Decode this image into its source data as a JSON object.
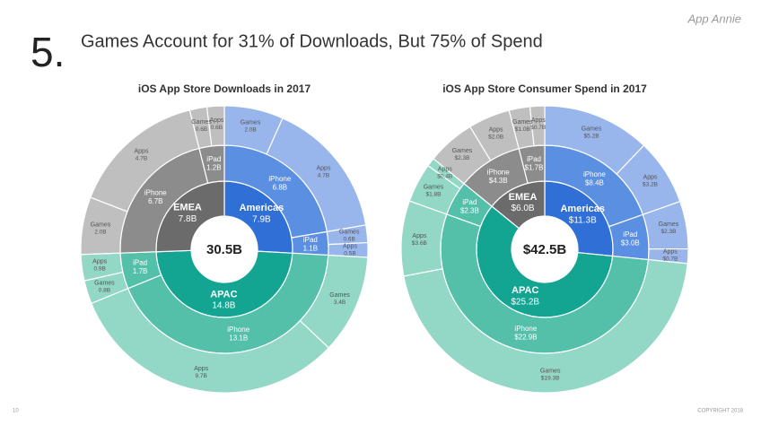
{
  "header": {
    "number": "5.",
    "title": "Games Account for 31% of Downloads, But 75% of Spend",
    "logo": "App Annie"
  },
  "footer": {
    "page": "10",
    "copyright": "COPYRIGHT 2018"
  },
  "chart_data": [
    {
      "type": "sunburst",
      "title": "iOS App Store Downloads in 2017",
      "total": 30.5,
      "total_label": "30.5B",
      "nodes": [
        {
          "name": "Americas",
          "value": 7.9,
          "value_label": "7.9B",
          "colors": [
            "#2f6fd6",
            "#5b8fe2",
            "#98b6ec"
          ],
          "children": [
            {
              "name": "iPhone",
              "value": 6.8,
              "value_label": "6.8B",
              "children": [
                {
                  "name": "Games",
                  "value": 2.0,
                  "value_label": "2.0B"
                },
                {
                  "name": "Apps",
                  "value": 4.7,
                  "value_label": "4.7B"
                }
              ]
            },
            {
              "name": "iPad",
              "value": 1.1,
              "value_label": "1.1B",
              "children": [
                {
                  "name": "Games",
                  "value": 0.6,
                  "value_label": "0.6B"
                },
                {
                  "name": "Apps",
                  "value": 0.5,
                  "value_label": "0.5B"
                }
              ]
            }
          ]
        },
        {
          "name": "APAC",
          "value": 14.8,
          "value_label": "14.8B",
          "colors": [
            "#13a592",
            "#55c0aa",
            "#93d7c7"
          ],
          "children": [
            {
              "name": "iPhone",
              "value": 13.1,
              "value_label": "13.1B",
              "children": [
                {
                  "name": "Games",
                  "value": 3.4,
                  "value_label": "3.4B"
                },
                {
                  "name": "Apps",
                  "value": 9.7,
                  "value_label": "9.7B"
                }
              ]
            },
            {
              "name": "iPad",
              "value": 1.7,
              "value_label": "1.7B",
              "children": [
                {
                  "name": "Games",
                  "value": 0.8,
                  "value_label": "0.8B"
                },
                {
                  "name": "Apps",
                  "value": 0.9,
                  "value_label": "0.9B"
                }
              ]
            }
          ]
        },
        {
          "name": "EMEA",
          "value": 7.8,
          "value_label": "7.8B",
          "colors": [
            "#6b6b6b",
            "#8c8c8c",
            "#bfbfbf"
          ],
          "children": [
            {
              "name": "iPhone",
              "value": 6.7,
              "value_label": "6.7B",
              "children": [
                {
                  "name": "Games",
                  "value": 2.0,
                  "value_label": "2.0B"
                },
                {
                  "name": "Apps",
                  "value": 4.7,
                  "value_label": "4.7B"
                }
              ]
            },
            {
              "name": "iPad",
              "value": 1.2,
              "value_label": "1.2B",
              "children": [
                {
                  "name": "Games",
                  "value": 0.6,
                  "value_label": "0.6B"
                },
                {
                  "name": "Apps",
                  "value": 0.6,
                  "value_label": "0.6B"
                }
              ]
            }
          ]
        }
      ]
    },
    {
      "type": "sunburst",
      "title": "iOS App Store Consumer Spend in 2017",
      "total": 42.5,
      "total_label": "$42.5B",
      "nodes": [
        {
          "name": "Americas",
          "value": 11.3,
          "value_label": "$11.3B",
          "colors": [
            "#2f6fd6",
            "#5b8fe2",
            "#98b6ec"
          ],
          "children": [
            {
              "name": "iPhone",
              "value": 8.4,
              "value_label": "$8.4B",
              "children": [
                {
                  "name": "Games",
                  "value": 5.2,
                  "value_label": "$5.2B"
                },
                {
                  "name": "Apps",
                  "value": 3.2,
                  "value_label": "$3.2B"
                }
              ]
            },
            {
              "name": "iPad",
              "value": 3.0,
              "value_label": "$3.0B",
              "children": [
                {
                  "name": "Games",
                  "value": 2.3,
                  "value_label": "$2.3B"
                },
                {
                  "name": "Apps",
                  "value": 0.7,
                  "value_label": "$0.7B"
                }
              ]
            }
          ]
        },
        {
          "name": "APAC",
          "value": 25.2,
          "value_label": "$25.2B",
          "colors": [
            "#13a592",
            "#55c0aa",
            "#93d7c7"
          ],
          "children": [
            {
              "name": "iPhone",
              "value": 22.9,
              "value_label": "$22.9B",
              "children": [
                {
                  "name": "Games",
                  "value": 19.3,
                  "value_label": "$19.3B"
                },
                {
                  "name": "Apps",
                  "value": 3.6,
                  "value_label": "$3.6B"
                }
              ]
            },
            {
              "name": "iPad",
              "value": 2.3,
              "value_label": "$2.3B",
              "children": [
                {
                  "name": "Games",
                  "value": 1.8,
                  "value_label": "$1.8B"
                },
                {
                  "name": "Apps",
                  "value": 0.4,
                  "value_label": "$0.4B"
                }
              ]
            }
          ]
        },
        {
          "name": "EMEA",
          "value": 6.0,
          "value_label": "$6.0B",
          "colors": [
            "#6b6b6b",
            "#8c8c8c",
            "#bfbfbf"
          ],
          "children": [
            {
              "name": "iPhone",
              "value": 4.3,
              "value_label": "$4.3B",
              "children": [
                {
                  "name": "Games",
                  "value": 2.3,
                  "value_label": "$2.3B"
                },
                {
                  "name": "Apps",
                  "value": 2.0,
                  "value_label": "$2.0B"
                }
              ]
            },
            {
              "name": "iPad",
              "value": 1.7,
              "value_label": "$1.7B",
              "children": [
                {
                  "name": "Games",
                  "value": 1.0,
                  "value_label": "$1.0B"
                },
                {
                  "name": "Apps",
                  "value": 0.7,
                  "value_label": "$0.7B"
                }
              ]
            }
          ]
        }
      ]
    }
  ]
}
